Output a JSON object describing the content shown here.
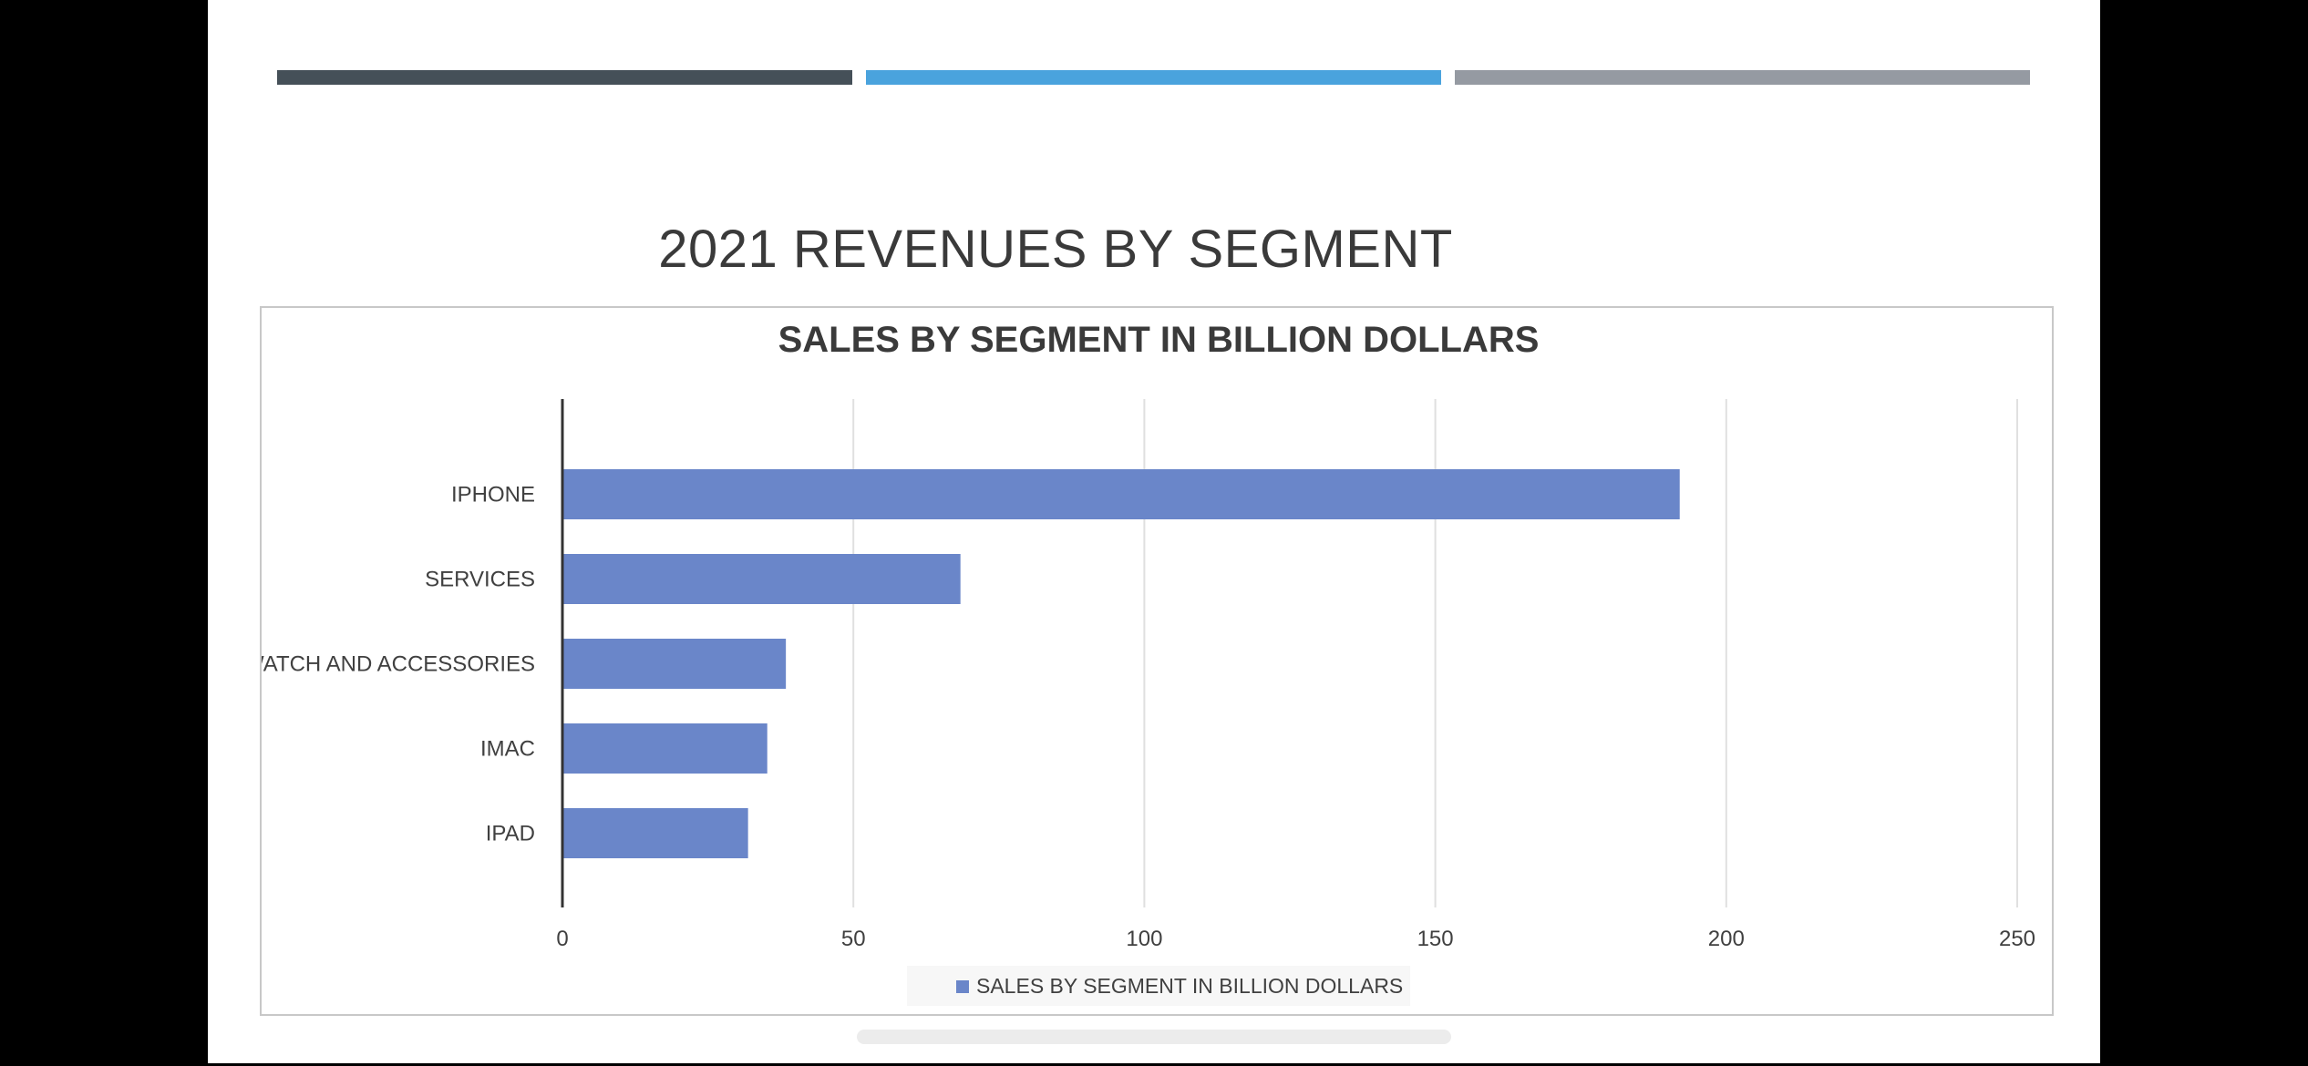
{
  "slide": {
    "title": "2021 REVENUES BY SEGMENT",
    "accent_colors": [
      "#455058",
      "#4aa3dd",
      "#959aa2"
    ]
  },
  "chart_data": {
    "type": "bar",
    "orientation": "horizontal",
    "title": "SALES BY SEGMENT IN BILLION DOLLARS",
    "categories": [
      "IPHONE",
      "SERVICES",
      "IWATCH AND ACCESSORIES",
      "IMAC",
      "IPAD"
    ],
    "series": [
      {
        "name": "SALES BY SEGMENT IN BILLION DOLLARS",
        "values": [
          192,
          68.4,
          38.4,
          35.2,
          31.9
        ],
        "color": "#6a86c9"
      }
    ],
    "xlim": [
      0,
      250
    ],
    "xticks": [
      "0",
      "50",
      "100",
      "150",
      "200",
      "250"
    ],
    "grid": true,
    "legend_position": "bottom"
  }
}
